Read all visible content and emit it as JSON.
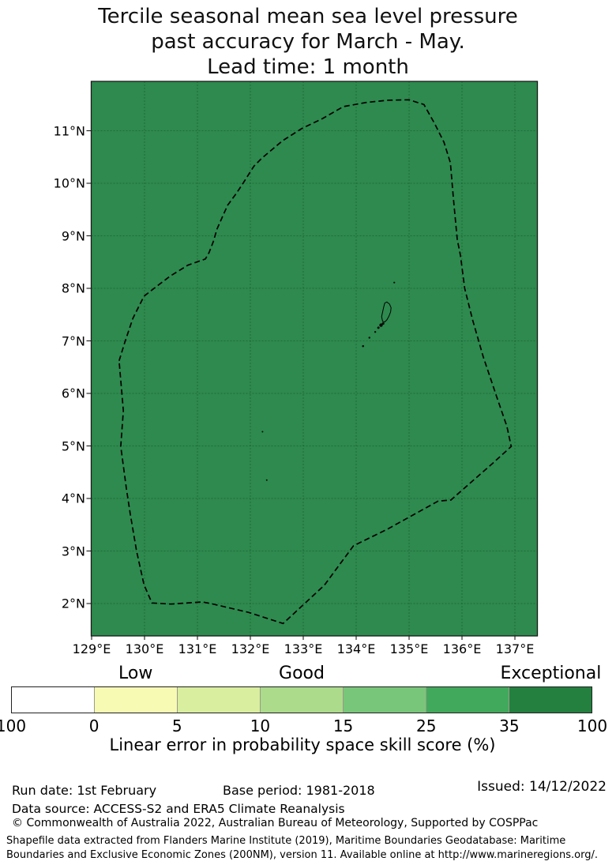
{
  "title": {
    "lines": [
      "Tercile seasonal mean sea level pressure",
      "past accuracy for March - May.",
      "Lead time: 1 month"
    ]
  },
  "map": {
    "background_color": "#2e8a4e",
    "grid_color": "rgba(0,0,0,0.30)",
    "frame_color": "#1a1a1a",
    "boundary_color": "#000000",
    "boundary_style": "dashed",
    "x_tick_labels": [
      "129°E",
      "130°E",
      "131°E",
      "132°E",
      "133°E",
      "134°E",
      "135°E",
      "136°E",
      "137°E"
    ],
    "x_tick_lons": [
      129,
      130,
      131,
      132,
      133,
      134,
      135,
      136,
      137
    ],
    "y_tick_labels": [
      "2°N",
      "3°N",
      "4°N",
      "5°N",
      "6°N",
      "7°N",
      "8°N",
      "9°N",
      "10°N",
      "11°N"
    ],
    "y_tick_lats": [
      2,
      3,
      4,
      5,
      6,
      7,
      8,
      9,
      10,
      11
    ],
    "grid_lons": [
      130,
      131,
      132,
      133,
      134,
      135,
      136,
      137
    ],
    "grid_lats": [
      2,
      3,
      4,
      5,
      6,
      7,
      8,
      9,
      10,
      11
    ],
    "eez_boundary_lonlat": [
      [
        129.52,
        6.62
      ],
      [
        129.63,
        6.98
      ],
      [
        129.78,
        7.43
      ],
      [
        129.99,
        7.85
      ],
      [
        130.18,
        8.0
      ],
      [
        130.48,
        8.23
      ],
      [
        130.82,
        8.44
      ],
      [
        131.15,
        8.56
      ],
      [
        131.22,
        8.68
      ],
      [
        131.3,
        8.89
      ],
      [
        131.37,
        9.13
      ],
      [
        131.48,
        9.38
      ],
      [
        131.57,
        9.58
      ],
      [
        131.75,
        9.83
      ],
      [
        131.85,
        9.98
      ],
      [
        132.07,
        10.33
      ],
      [
        132.22,
        10.48
      ],
      [
        132.61,
        10.81
      ],
      [
        132.97,
        11.04
      ],
      [
        133.36,
        11.23
      ],
      [
        133.76,
        11.46
      ],
      [
        134.2,
        11.54
      ],
      [
        134.6,
        11.58
      ],
      [
        135.0,
        11.59
      ],
      [
        135.28,
        11.5
      ],
      [
        135.48,
        11.14
      ],
      [
        135.66,
        10.78
      ],
      [
        135.78,
        10.39
      ],
      [
        135.84,
        9.68
      ],
      [
        135.91,
        8.93
      ],
      [
        135.97,
        8.63
      ],
      [
        136.05,
        8.0
      ],
      [
        136.2,
        7.4
      ],
      [
        136.4,
        6.7
      ],
      [
        136.65,
        5.95
      ],
      [
        136.85,
        5.37
      ],
      [
        136.93,
        4.99
      ],
      [
        136.57,
        4.66
      ],
      [
        135.79,
        3.97
      ],
      [
        135.55,
        3.95
      ],
      [
        134.58,
        3.41
      ],
      [
        133.95,
        3.1
      ],
      [
        133.4,
        2.35
      ],
      [
        132.62,
        1.62
      ],
      [
        131.97,
        1.83
      ],
      [
        131.25,
        2.0
      ],
      [
        131.09,
        2.03
      ],
      [
        130.5,
        1.99
      ],
      [
        130.14,
        2.01
      ],
      [
        129.99,
        2.36
      ],
      [
        129.85,
        3.0
      ],
      [
        129.73,
        3.71
      ],
      [
        129.66,
        4.17
      ],
      [
        129.55,
        4.99
      ],
      [
        129.6,
        5.67
      ]
    ],
    "islands": {
      "main_island_outline_lonlat": [
        [
          134.5,
          7.37
        ],
        [
          134.54,
          7.36
        ],
        [
          134.58,
          7.4
        ],
        [
          134.62,
          7.47
        ],
        [
          134.65,
          7.55
        ],
        [
          134.66,
          7.63
        ],
        [
          134.63,
          7.7
        ],
        [
          134.58,
          7.74
        ],
        [
          134.54,
          7.72
        ],
        [
          134.52,
          7.64
        ],
        [
          134.5,
          7.55
        ],
        [
          134.48,
          7.46
        ]
      ],
      "islet_dots_lonlat_r": [
        [
          134.47,
          7.3,
          2.2
        ],
        [
          134.51,
          7.33,
          1.6
        ],
        [
          134.42,
          7.25,
          1.5
        ],
        [
          134.36,
          7.17,
          1.2
        ],
        [
          134.25,
          7.06,
          1.2
        ],
        [
          134.13,
          6.9,
          1.3
        ],
        [
          134.72,
          8.11,
          1.1
        ],
        [
          132.23,
          5.27,
          1.0
        ],
        [
          132.31,
          4.35,
          1.0
        ]
      ]
    }
  },
  "colorbar": {
    "segment_colors": [
      "#ffffff",
      "#f7fab3",
      "#d9ee9f",
      "#abdb8b",
      "#78c679",
      "#41a95b",
      "#23803f"
    ],
    "tick_labels": [
      "100",
      "0",
      "5",
      "10",
      "15",
      "25",
      "35",
      "100"
    ],
    "category_labels": [
      {
        "label": "Low",
        "segment_index": 1
      },
      {
        "label": "Good",
        "segment_index": 3
      },
      {
        "label": "Exceptional",
        "segment_index": 6
      }
    ],
    "caption": "Linear error in probability space skill score (%)"
  },
  "footer": {
    "run_date": "Run date: 1st February",
    "base_period": "Base period: 1981-2018",
    "issued": "Issued: 14/12/2022",
    "data_source": "Data source: ACCESS-S2 and ERA5 Climate Reanalysis",
    "copyright": "© Commonwealth of Australia 2022, Australian Bureau of Meteorology, Supported by COSPPac",
    "shapefile_note": "Shapefile data extracted from Flanders Marine Institute (2019), Maritime Boundaries Geodatabase: Maritime Boundaries and Exclusive Economic Zones (200NM), version 11. Available online at http://www.marineregions.org/."
  },
  "chart_data": {
    "type": "heatmap",
    "title": "Tercile seasonal mean sea level pressure past accuracy for March - May. Lead time: 1 month",
    "xlabel": "",
    "ylabel": "",
    "x_ticks": [
      "129°E",
      "130°E",
      "131°E",
      "132°E",
      "133°E",
      "134°E",
      "135°E",
      "136°E",
      "137°E"
    ],
    "y_ticks": [
      "2°N",
      "3°N",
      "4°N",
      "5°N",
      "6°N",
      "7°N",
      "8°N",
      "9°N",
      "10°N",
      "11°N"
    ],
    "x_range_deg_east": [
      128.9,
      137.4
    ],
    "y_range_deg_north": [
      1.2,
      11.9
    ],
    "grid": true,
    "field": "Linear error in probability space skill score (%)",
    "field_values": "uniform dark-green fill over entire shown domain, i.e. 35-100% (Exceptional) everywhere",
    "colorbar_bin_edges": [
      100,
      0,
      5,
      10,
      15,
      25,
      35,
      100
    ],
    "colorbar_bin_colors": [
      "#ffffff",
      "#f7fab3",
      "#d9ee9f",
      "#abdb8b",
      "#78c679",
      "#41a95b",
      "#23803f"
    ],
    "colorbar_categories": [
      "Low",
      "Good",
      "Exceptional"
    ],
    "legend_position": "bottom",
    "overlay": "Palau Exclusive Economic Zone boundary shown as black dashed polygon; Palau islands drawn at ~134.5°E 7.5°N"
  }
}
